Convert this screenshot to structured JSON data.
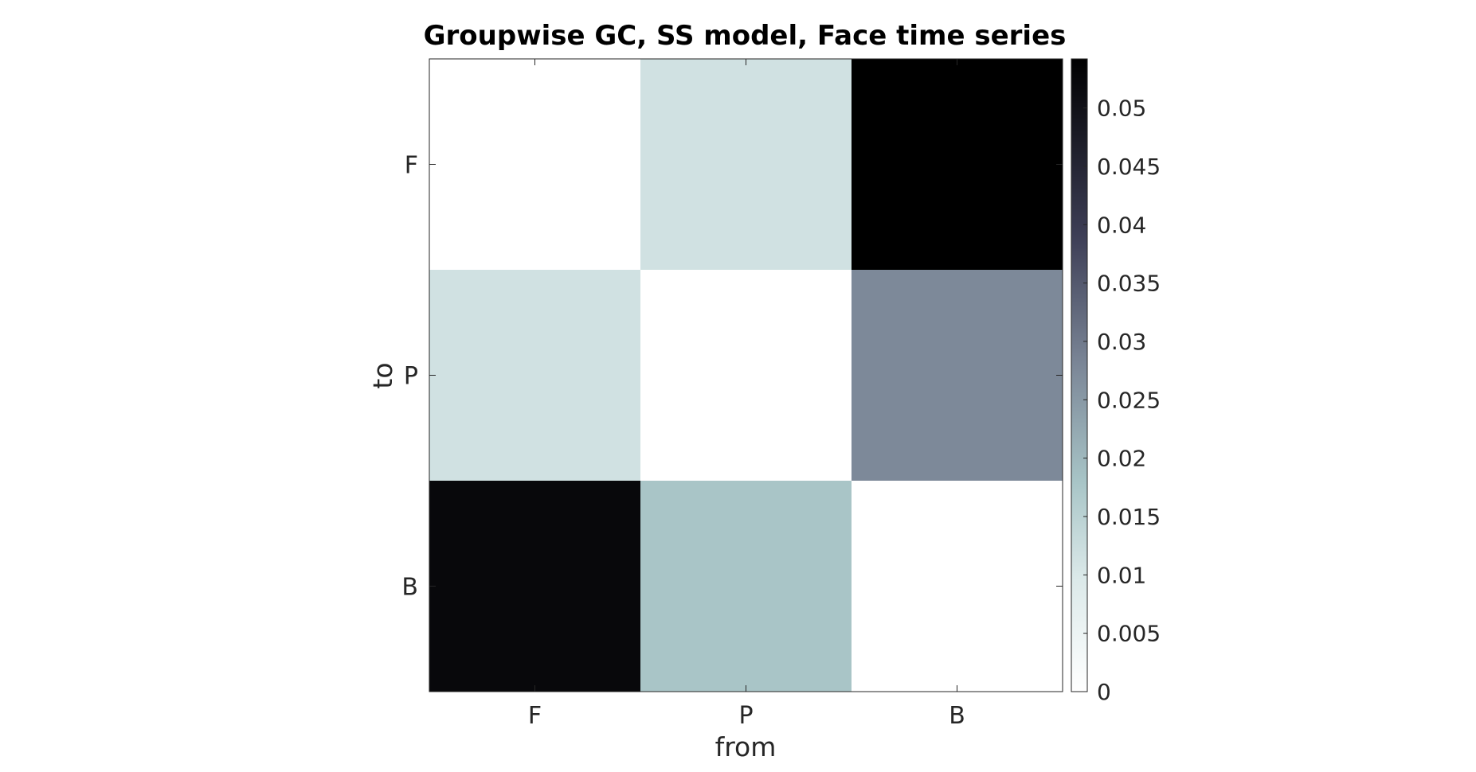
{
  "chart_data": {
    "type": "heatmap",
    "title": "Groupwise GC, SS model, Face time series",
    "xlabel": "from",
    "ylabel": "to",
    "x_categories": [
      "F",
      "P",
      "B"
    ],
    "y_categories": [
      "F",
      "P",
      "B"
    ],
    "values": [
      [
        0,
        0.0115,
        0.0542
      ],
      [
        0.0115,
        0,
        0.0275
      ],
      [
        0.0522,
        0.0178,
        0
      ]
    ],
    "colorbar": {
      "range": [
        0,
        0.0542
      ],
      "ticks": [
        0,
        0.005,
        0.01,
        0.015,
        0.02,
        0.025,
        0.03,
        0.035,
        0.04,
        0.045,
        0.05
      ],
      "tick_labels": [
        "0",
        "0.005",
        "0.01",
        "0.015",
        "0.02",
        "0.025",
        "0.03",
        "0.035",
        "0.04",
        "0.045",
        "0.05"
      ],
      "colormap": "bone-reversed"
    },
    "colors": {
      "low": "#ffffff",
      "mid_low": "#adcbcb",
      "mid": "#7a8596",
      "high": "#000000"
    }
  }
}
